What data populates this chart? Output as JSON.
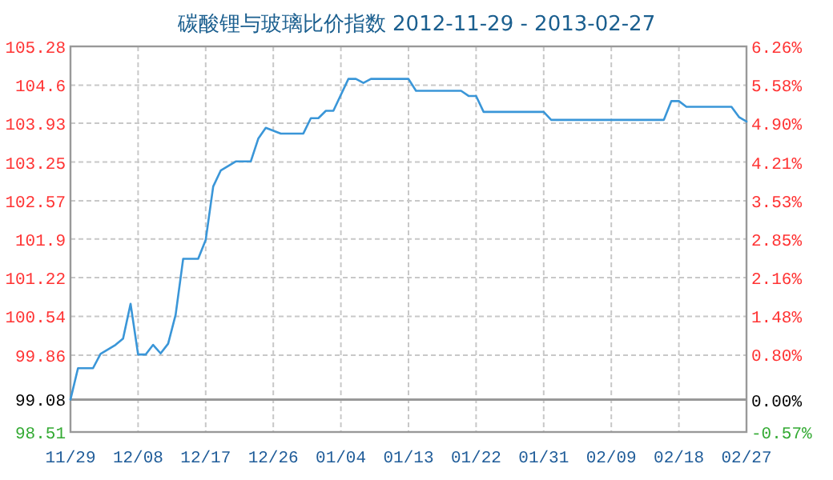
{
  "chart_data": {
    "type": "line",
    "title": "碳酸锂与玻璃比价指数 2012-11-29 - 2013-02-27",
    "x": [
      "2012-11-29",
      "2012-11-30",
      "2012-12-02",
      "2012-12-03",
      "2012-12-05",
      "2012-12-06",
      "2012-12-07",
      "2012-12-08",
      "2012-12-09",
      "2012-12-10",
      "2012-12-11",
      "2012-12-12",
      "2012-12-13",
      "2012-12-14",
      "2012-12-16",
      "2012-12-17",
      "2012-12-18",
      "2012-12-19",
      "2012-12-21",
      "2012-12-23",
      "2012-12-24",
      "2012-12-25",
      "2012-12-27",
      "2012-12-30",
      "2012-12-31",
      "2013-01-01",
      "2013-01-02",
      "2013-01-03",
      "2013-01-05",
      "2013-01-06",
      "2013-01-07",
      "2013-01-08",
      "2013-01-13",
      "2013-01-14",
      "2013-01-20",
      "2013-01-21",
      "2013-01-22",
      "2013-01-23",
      "2013-01-31",
      "2013-02-01",
      "2013-02-16",
      "2013-02-17",
      "2013-02-18",
      "2013-02-19",
      "2013-02-25",
      "2013-02-26",
      "2013-02-27"
    ],
    "series": [
      {
        "color": "#3a96d8",
        "values": [
          99.08,
          99.63,
          99.63,
          99.88,
          100.04,
          100.15,
          100.76,
          99.87,
          99.87,
          100.04,
          99.89,
          100.06,
          100.57,
          101.55,
          101.55,
          101.88,
          102.82,
          103.1,
          103.26,
          103.26,
          103.66,
          103.85,
          103.75,
          103.75,
          104.02,
          104.02,
          104.15,
          104.15,
          104.71,
          104.71,
          104.64,
          104.71,
          104.71,
          104.5,
          104.5,
          104.41,
          104.41,
          104.13,
          104.13,
          103.99,
          103.99,
          104.32,
          104.32,
          104.22,
          104.22,
          104.04,
          103.96
        ]
      }
    ],
    "xlim": [
      "2012-11-29",
      "2013-02-27"
    ],
    "xticks": [
      {
        "value": "2012-11-29",
        "label": "11/29"
      },
      {
        "value": "2012-12-08",
        "label": "12/08"
      },
      {
        "value": "2012-12-17",
        "label": "12/17"
      },
      {
        "value": "2012-12-26",
        "label": "12/26"
      },
      {
        "value": "2013-01-04",
        "label": "01/04"
      },
      {
        "value": "2013-01-13",
        "label": "01/13"
      },
      {
        "value": "2013-01-22",
        "label": "01/22"
      },
      {
        "value": "2013-01-31",
        "label": "01/31"
      },
      {
        "value": "2013-02-09",
        "label": "02/09"
      },
      {
        "value": "2013-02-18",
        "label": "02/18"
      },
      {
        "value": "2013-02-27",
        "label": "02/27"
      }
    ],
    "ylim": [
      98.51,
      105.28
    ],
    "yticks": [
      {
        "value": 98.51,
        "label": "98.51"
      },
      {
        "value": 99.08,
        "label": "99.08"
      },
      {
        "value": 99.86,
        "label": "99.86"
      },
      {
        "value": 100.54,
        "label": "100.54"
      },
      {
        "value": 101.22,
        "label": "101.22"
      },
      {
        "value": 101.9,
        "label": "101.9"
      },
      {
        "value": 102.57,
        "label": "102.57"
      },
      {
        "value": 103.25,
        "label": "103.25"
      },
      {
        "value": 103.93,
        "label": "103.93"
      },
      {
        "value": 104.6,
        "label": "104.6"
      },
      {
        "value": 105.28,
        "label": "105.28"
      }
    ],
    "y2lim": [
      -0.57,
      6.26
    ],
    "y2ticks": [
      {
        "value": -0.57,
        "label": "-0.57%"
      },
      {
        "value": 0,
        "label": "0.00%"
      },
      {
        "value": 0.8,
        "label": "0.80%"
      },
      {
        "value": 1.48,
        "label": "1.48%"
      },
      {
        "value": 2.16,
        "label": "2.16%"
      },
      {
        "value": 2.85,
        "label": "2.85%"
      },
      {
        "value": 3.53,
        "label": "3.53%"
      },
      {
        "value": 4.21,
        "label": "4.21%"
      },
      {
        "value": 4.9,
        "label": "4.90%"
      },
      {
        "value": 5.58,
        "label": "5.58%"
      },
      {
        "value": 6.26,
        "label": "6.26%"
      }
    ],
    "ref_lines": [
      {
        "axis": "y",
        "value": 99.08,
        "color": "#999999"
      }
    ],
    "grid": true,
    "marker": "none",
    "line_style": "solid"
  }
}
